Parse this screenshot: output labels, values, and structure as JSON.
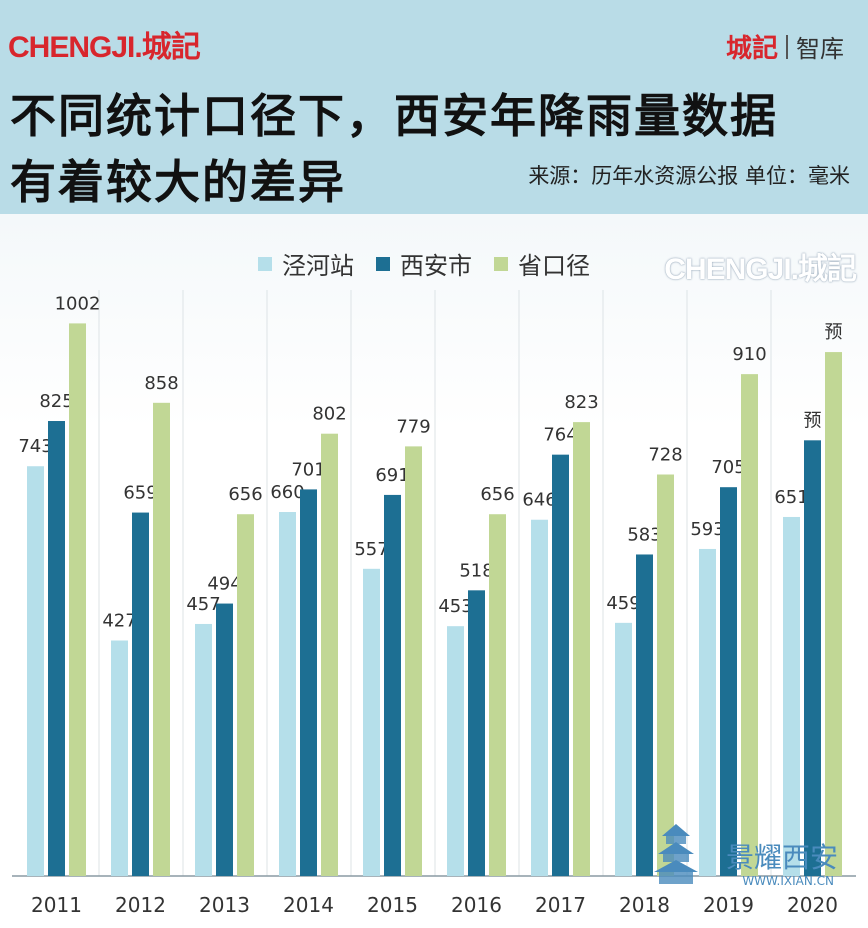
{
  "header": {
    "logo": "CHENGJI.城記",
    "brand_red": "城記",
    "brand_sub": "智库",
    "title_line1": "不同统计口径下，西安年降雨量数据",
    "title_line2": "有着较大的差异",
    "source": "来源：历年水资源公报  单位：毫米"
  },
  "watermark": {
    "logo": "CHENGJI.城記",
    "site_name": "景耀西安",
    "site_url": "WWW.IXIAN.CN"
  },
  "colors": {
    "s1": "#b5dfea",
    "s2": "#1d6f93",
    "s3": "#c1d795",
    "header_bg": "#b9dce7",
    "brand": "#d8262d"
  },
  "chart_data": {
    "type": "bar",
    "title": "不同统计口径下，西安年降雨量数据有着较大的差异",
    "ylabel": "毫米",
    "categories": [
      "2011",
      "2012",
      "2013",
      "2014",
      "2015",
      "2016",
      "2017",
      "2018",
      "2019",
      "2020"
    ],
    "series": [
      {
        "name": "泾河站",
        "values": [
          743,
          427,
          457,
          660,
          557,
          453,
          646,
          459,
          593,
          651
        ],
        "labels": [
          "743",
          "427",
          "457",
          "660",
          "557",
          "453",
          "646",
          "459",
          "593",
          "651"
        ]
      },
      {
        "name": "西安市",
        "values": [
          825,
          659,
          494,
          701,
          691,
          518,
          764,
          583,
          705,
          790
        ],
        "labels": [
          "825",
          "659",
          "494",
          "701",
          "691",
          "518",
          "764",
          "583",
          "705",
          "预"
        ]
      },
      {
        "name": "省口径",
        "values": [
          1002,
          858,
          656,
          802,
          779,
          656,
          823,
          728,
          910,
          950
        ],
        "labels": [
          "1002",
          "858",
          "656",
          "802",
          "779",
          "656",
          "823",
          "728",
          "910",
          "预"
        ]
      }
    ],
    "ylim": [
      0,
      1100
    ],
    "grid": true,
    "legend": "top"
  }
}
